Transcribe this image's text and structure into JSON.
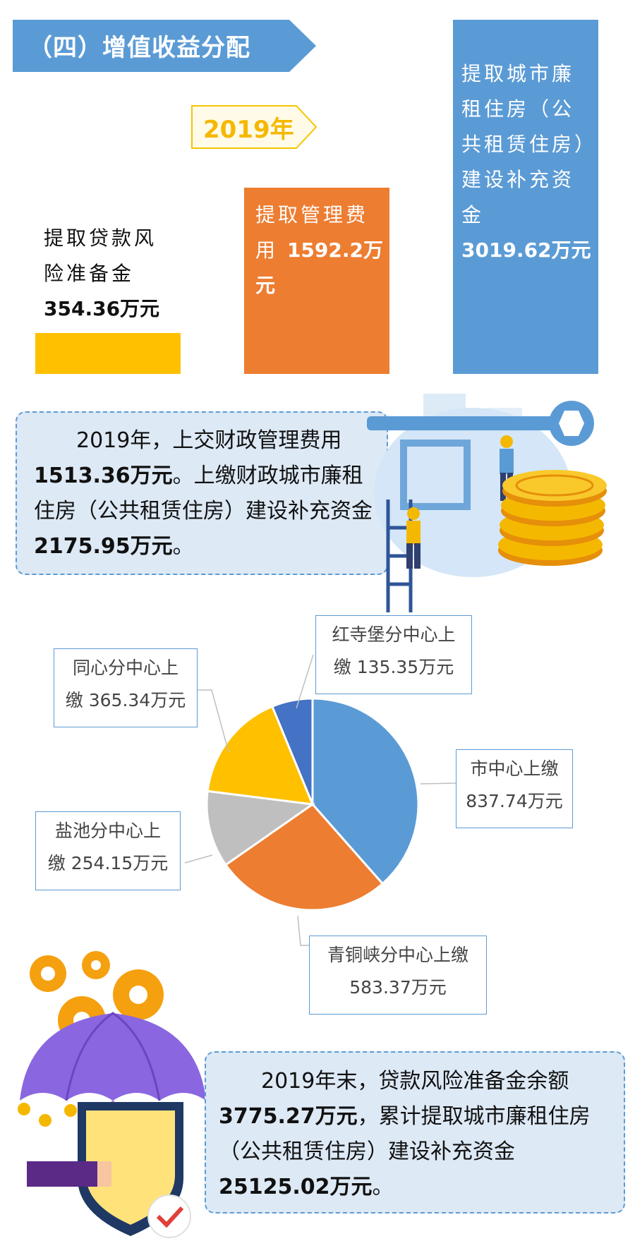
{
  "section_title": "（四）增值收益分配",
  "year_tag": "2019年",
  "bars": [
    {
      "label": "提取贷款风险准备金",
      "amount": "354.36万元",
      "value": 354.36,
      "color": "#ffc000"
    },
    {
      "label": "提取管理费用",
      "amount": "1592.2万元",
      "value": 1592.2,
      "color": "#ed7d31"
    },
    {
      "label": "提取城市廉租住房（公共租赁住房）建设补充资金",
      "amount": "3019.62万元",
      "value": 3019.62,
      "color": "#5b9bd5"
    }
  ],
  "callout1": {
    "t1": "2019年，上交财政管理费用",
    "b1": "1513.36万元",
    "t2": "。上缴财政城市廉租住房（公共租赁住房）建设补充资金",
    "b2": "2175.95万元",
    "t3": "。"
  },
  "callout2": {
    "t1": "2019年末，贷款风险准备金余额",
    "b1": "3775.27万元",
    "t2": "，累计提取城市廉租住房（公共租赁住房）建设补充资金",
    "b2": "25125.02万元",
    "t3": "。"
  },
  "pie_labels": {
    "shizhongxin": {
      "name": "市中心上缴",
      "amount": "837.74万元"
    },
    "qingtongxia": {
      "name": "青铜峡分中心上缴",
      "amount": "583.37万元"
    },
    "yanchi": {
      "name": "盐池分中心上",
      "amount": "缴 254.15万元"
    },
    "tongxin": {
      "name": "同心分中心上",
      "amount": "缴 365.34万元"
    },
    "hongsibao": {
      "name": "红寺堡分中心上",
      "amount": "缴 135.35万元"
    }
  },
  "chart_data": [
    {
      "type": "bar",
      "categories": [
        "提取贷款风险准备金",
        "提取管理费用",
        "提取城市廉租住房（公共租赁住房）建设补充资金"
      ],
      "values": [
        354.36,
        1592.2,
        3019.62
      ]
    },
    {
      "type": "pie",
      "categories": [
        "市中心上缴",
        "青铜峡分中心上缴",
        "盐池分中心上缴",
        "同心分中心上缴",
        "红寺堡分中心上缴"
      ],
      "values": [
        837.74,
        583.37,
        254.15,
        365.34,
        135.35
      ],
      "colors": [
        "#5b9bd5",
        "#ed7d31",
        "#bfbfbf",
        "#ffc000",
        "#4472c4"
      ]
    }
  ]
}
